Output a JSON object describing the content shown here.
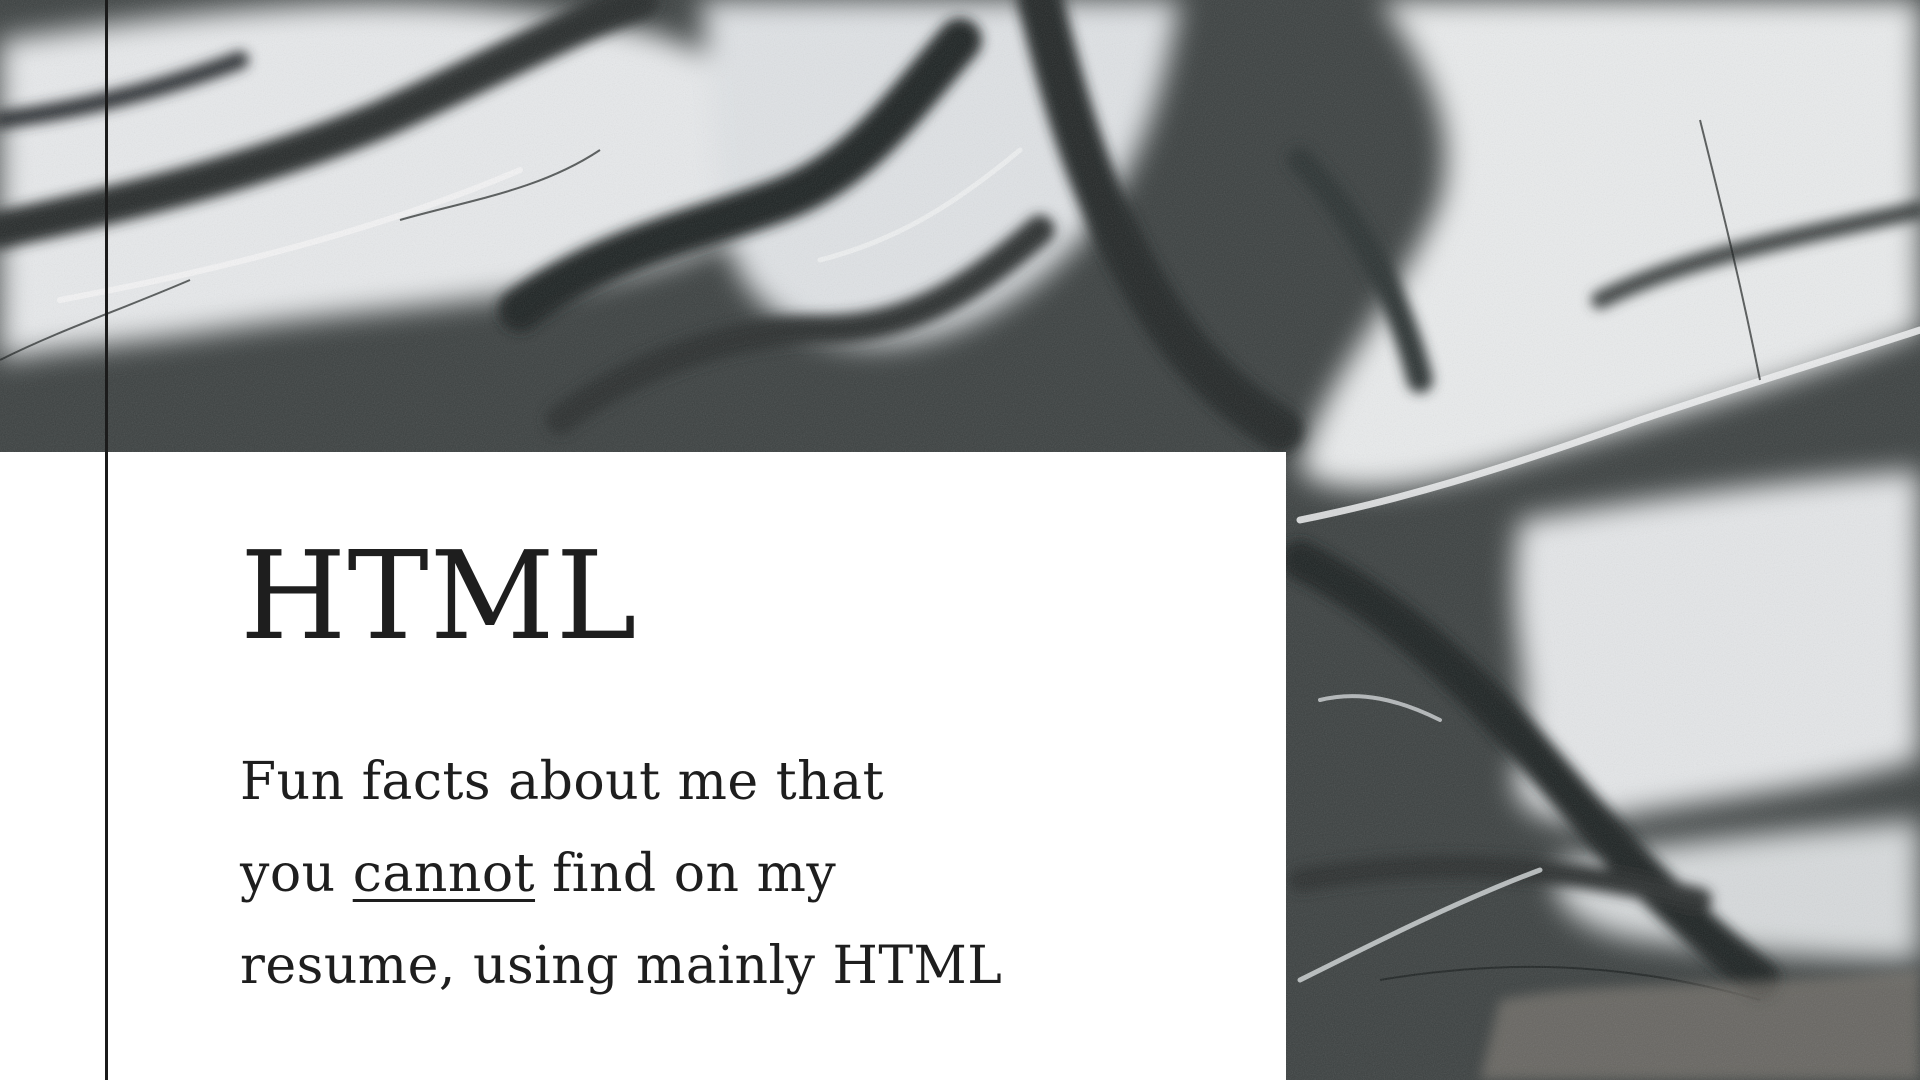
{
  "slide": {
    "title": "HTML",
    "subtitle": {
      "line1": "Fun facts about me that",
      "line2_before": "you",
      "line2_emphasis": "cannot",
      "line2_after": "find on my",
      "line3": "resume, using mainly HTML"
    }
  },
  "colors": {
    "text": "#1e1e1e",
    "card": "#ffffff",
    "rule": "#1b1b1b"
  }
}
